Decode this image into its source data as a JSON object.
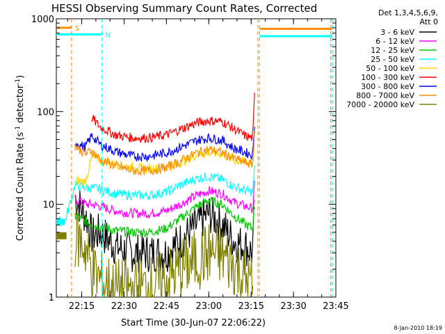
{
  "chart_data": {
    "type": "line",
    "title": "HESSI Observing Summary Count Rates, Corrected",
    "xlabel": "Start Time (30-Jun-07 22:06:22)",
    "ylabel_parts": [
      "Corrected Count Rate (s",
      "-1",
      " detector",
      "-1",
      ")"
    ],
    "y_scale": "log",
    "ylim": [
      1,
      1000
    ],
    "xlim_minutes": [
      22.1,
      23.75
    ],
    "x_ticks": [
      "22:15",
      "22:30",
      "22:45",
      "23:00",
      "23:15",
      "23:30",
      "23:45"
    ],
    "y_ticks": [
      "1",
      "10",
      "100",
      "1000"
    ],
    "grid": false,
    "legend_header": [
      "Det 1,3,4,5,6,9,",
      "Att 0"
    ],
    "series": [
      {
        "name": "3 - 6 keV",
        "color": "#000000",
        "x": [
          22.21,
          22.28,
          22.31,
          22.36,
          22.45,
          22.55,
          22.65,
          22.75,
          22.83,
          22.93,
          23.0,
          23.08,
          23.15,
          23.22,
          23.26,
          23.27
        ],
        "y": [
          12,
          7,
          4.5,
          5,
          3.5,
          3,
          3,
          3,
          4,
          6,
          8,
          6,
          4,
          3.5,
          3,
          10
        ]
      },
      {
        "name": "6 - 12 keV",
        "color": "#ff00ff",
        "x": [
          22.21,
          22.28,
          22.31,
          22.36,
          22.45,
          22.55,
          22.65,
          22.75,
          22.83,
          22.93,
          23.0,
          23.08,
          23.15,
          23.22,
          23.26,
          23.27
        ],
        "y": [
          11.5,
          10,
          10,
          9.5,
          8.5,
          8,
          8,
          8.5,
          10,
          12.5,
          14,
          13,
          10.5,
          9.5,
          9,
          16
        ]
      },
      {
        "name": "12 - 25 keV",
        "color": "#00cc00",
        "x": [
          22.21,
          22.28,
          22.31,
          22.36,
          22.45,
          22.55,
          22.65,
          22.75,
          22.83,
          22.93,
          23.0,
          23.08,
          23.15,
          23.22,
          23.26,
          23.27
        ],
        "y": [
          7.5,
          6.5,
          6,
          5.8,
          5.2,
          5,
          5,
          5.5,
          7,
          9.5,
          11,
          10,
          7.5,
          6,
          5.5,
          12
        ]
      },
      {
        "name": "25 - 50 keV",
        "color": "#00ffff",
        "x": [
          22.1,
          22.15,
          22.21,
          22.28,
          22.31,
          22.36,
          22.45,
          22.55,
          22.65,
          22.75,
          22.83,
          22.93,
          23.0,
          23.08,
          23.15,
          23.22,
          23.26,
          23.27
        ],
        "y": [
          6.5,
          6.5,
          16,
          15,
          15,
          14.5,
          13,
          12.5,
          12.5,
          13.5,
          16,
          19,
          20,
          18.5,
          15.5,
          14,
          13.5,
          24
        ]
      },
      {
        "name": "50 - 100 keV",
        "color": "#ffd700",
        "x": [
          22.21,
          22.27,
          22.31,
          22.36,
          22.45,
          22.55,
          22.65,
          22.75,
          22.83,
          22.93,
          23.0,
          23.08,
          23.15,
          23.22,
          23.26,
          23.27
        ],
        "y": [
          18,
          17.5,
          32,
          30,
          27,
          25,
          24,
          25,
          28,
          34,
          36,
          35,
          30,
          28,
          28,
          55
        ]
      },
      {
        "name": "100 - 300 keV",
        "color": "#ff0000",
        "x": [
          22.31,
          22.36,
          22.45,
          22.55,
          22.65,
          22.75,
          22.83,
          22.93,
          23.0,
          23.08,
          23.15,
          23.22,
          23.26,
          23.27
        ],
        "y": [
          85,
          68,
          56,
          52,
          52,
          56,
          64,
          76,
          80,
          78,
          65,
          54,
          52,
          150
        ]
      },
      {
        "name": "300 - 800 keV",
        "color": "#0000ff",
        "x": [
          22.21,
          22.27,
          22.31,
          22.36,
          22.45,
          22.55,
          22.65,
          22.75,
          22.83,
          22.93,
          23.0,
          23.08,
          23.15,
          23.22,
          23.26,
          23.27
        ],
        "y": [
          47,
          41,
          55,
          44,
          37,
          33,
          33,
          36,
          41,
          49,
          52,
          49,
          40,
          36,
          34,
          75
        ]
      },
      {
        "name": "800 - 7000 keV",
        "color": "#ff8c00",
        "x": [
          22.21,
          22.27,
          22.31,
          22.36,
          22.45,
          22.55,
          22.65,
          22.75,
          22.83,
          22.93,
          23.0,
          23.08,
          23.15,
          23.22,
          23.26,
          23.27
        ],
        "y": [
          43,
          35,
          38,
          30,
          26,
          23,
          23,
          25,
          29,
          36,
          39,
          36,
          31,
          28,
          27,
          60
        ]
      },
      {
        "name": "7000 - 20000 keV",
        "color": "#808000",
        "x": [
          22.21,
          22.27,
          22.31,
          22.36,
          22.45,
          22.55,
          22.65,
          22.75,
          22.83,
          22.93,
          23.0,
          23.08,
          23.15,
          23.22,
          23.26
        ],
        "y": [
          4.5,
          3.5,
          2,
          1.5,
          1.2,
          1.2,
          1.3,
          1.5,
          2,
          2.5,
          3,
          2.8,
          2.2,
          1.5,
          1.3
        ]
      }
    ],
    "flags": [
      {
        "label": "S",
        "color": "#ff8c00",
        "x_start": 22.1,
        "x_end": 22.19,
        "level": 800
      },
      {
        "label": "N",
        "color": "#00ffff",
        "x_start": 22.1,
        "x_end": 22.37,
        "level": 680
      }
    ],
    "top_bars": [
      {
        "color": "#ff8c00",
        "x_start": 23.3,
        "x_end": 23.73,
        "level": 780
      },
      {
        "color": "#00ffff",
        "x_start": 23.3,
        "x_end": 23.73,
        "level": 650
      }
    ],
    "vlines": [
      {
        "x": 22.19,
        "color": "#ff8c00"
      },
      {
        "x": 22.37,
        "color": "#00ffff"
      },
      {
        "x": 23.29,
        "color": "#ff8c00"
      },
      {
        "x": 23.3,
        "color": "#00ffff"
      },
      {
        "x": 23.72,
        "color": "#ff8c00"
      },
      {
        "x": 23.73,
        "color": "#00ffff"
      }
    ],
    "left_bars": [
      {
        "color": "#00ffff",
        "x_start": 22.1,
        "x_end": 22.15,
        "y_start": 6,
        "y_end": 7
      },
      {
        "color": "#808000",
        "x_start": 22.1,
        "x_end": 22.16,
        "y_start": 4.2,
        "y_end": 5
      }
    ]
  },
  "footer": {
    "timestamp": "8-Jan-2010 18:19"
  }
}
